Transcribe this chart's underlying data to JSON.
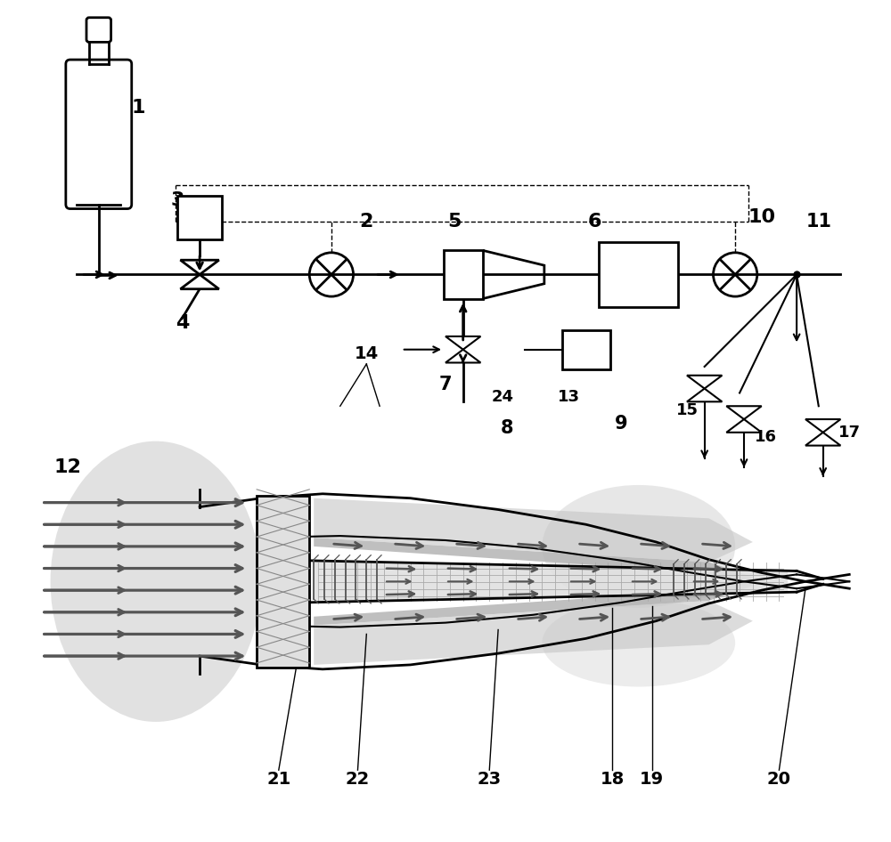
{
  "bg": "#ffffff",
  "lc": "#000000",
  "ag": "#555555",
  "lg": "#c8c8c8",
  "mg": "#999999",
  "dg": "#666666"
}
